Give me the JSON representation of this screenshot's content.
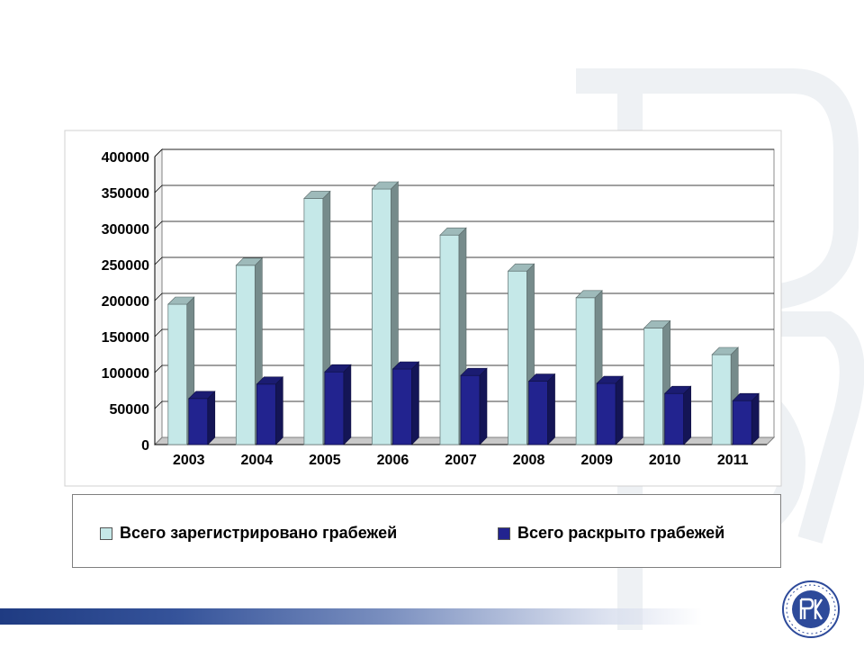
{
  "chart_data": {
    "type": "bar",
    "categories": [
      "2003",
      "2004",
      "2005",
      "2006",
      "2007",
      "2008",
      "2009",
      "2010",
      "2011"
    ],
    "series": [
      {
        "name": "Всего зарегистрировано грабежей",
        "values": [
          195000,
          249000,
          342000,
          355000,
          291000,
          241000,
          204000,
          162000,
          125000
        ],
        "color": "#c5e8e8"
      },
      {
        "name": "Всего раскрыто грабежей",
        "values": [
          64000,
          84000,
          101000,
          105000,
          96000,
          88000,
          85000,
          71000,
          61000
        ],
        "color": "#22238f"
      }
    ],
    "ylim": [
      0,
      400000
    ],
    "yticks": [
      "0",
      "50000",
      "100000",
      "150000",
      "200000",
      "250000",
      "300000",
      "350000",
      "400000"
    ],
    "grid": true,
    "legend_position": "bottom"
  },
  "colors": {
    "registered": "#c5e8e8",
    "solved": "#22238f",
    "footer_band": "#1f3b82",
    "logo": "#2d4a9a"
  },
  "logo_icon": "hse-university-logo-icon"
}
